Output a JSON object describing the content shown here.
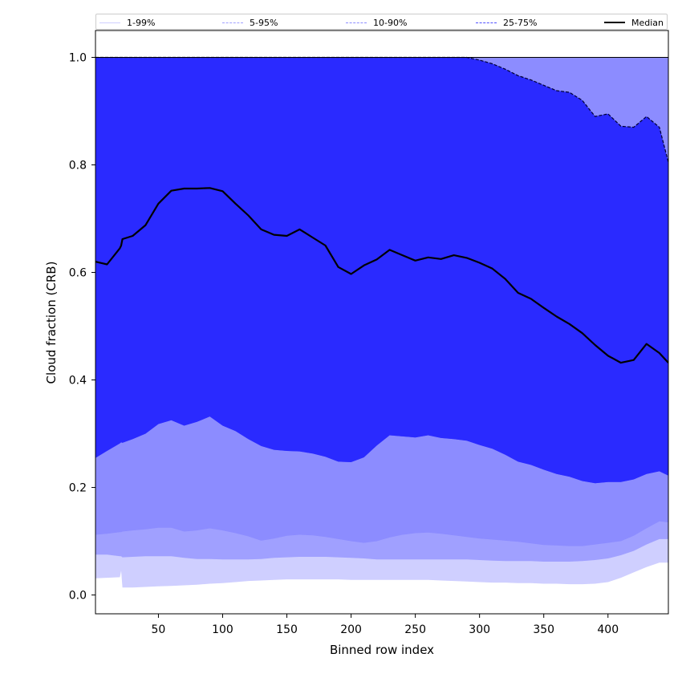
{
  "chart_data": {
    "type": "area",
    "title": "",
    "xlabel": "Binned row index",
    "ylabel": "Cloud fraction (CRB)",
    "xlim": [
      1,
      447
    ],
    "ylim": [
      -0.035,
      1.05
    ],
    "xticks": [
      50,
      100,
      150,
      200,
      250,
      300,
      350,
      400
    ],
    "yticks": [
      0.0,
      0.2,
      0.4,
      0.6,
      0.8,
      1.0
    ],
    "ytick_labels": [
      "0.0",
      "0.2",
      "0.4",
      "0.6",
      "0.8",
      "1.0"
    ],
    "grid": false,
    "legend_position": "top, above plot",
    "legend": [
      {
        "label": "1-99%",
        "color": "#cfcfff",
        "style": "solid",
        "width": 0.7
      },
      {
        "label": "5-95%",
        "color": "#a0a0ff",
        "style": "dashed",
        "width": 0.7
      },
      {
        "label": "10-90%",
        "color": "#8c8cff",
        "style": "dashed",
        "width": 1.2
      },
      {
        "label": "25-75%",
        "color": "#5050ff",
        "style": "dashed",
        "width": 1.6
      },
      {
        "label": "Median",
        "color": "#000000",
        "style": "solid",
        "width": 2.2
      }
    ],
    "x": [
      1,
      10,
      20,
      21,
      22,
      30,
      40,
      50,
      60,
      70,
      80,
      90,
      100,
      110,
      120,
      130,
      140,
      150,
      160,
      170,
      180,
      190,
      200,
      210,
      220,
      230,
      240,
      250,
      260,
      270,
      280,
      290,
      300,
      310,
      320,
      330,
      340,
      350,
      360,
      370,
      380,
      390,
      400,
      410,
      420,
      430,
      440,
      447
    ],
    "bands": [
      {
        "name": "1-99%",
        "color": "#cfcfff",
        "lower": [
          0.031,
          0.032,
          0.033,
          0.045,
          0.014,
          0.014,
          0.015,
          0.016,
          0.017,
          0.018,
          0.019,
          0.021,
          0.022,
          0.024,
          0.026,
          0.027,
          0.028,
          0.029,
          0.029,
          0.029,
          0.029,
          0.029,
          0.028,
          0.028,
          0.028,
          0.028,
          0.028,
          0.028,
          0.028,
          0.027,
          0.026,
          0.025,
          0.024,
          0.023,
          0.023,
          0.022,
          0.022,
          0.021,
          0.021,
          0.02,
          0.02,
          0.021,
          0.024,
          0.032,
          0.042,
          0.052,
          0.06,
          0.06
        ],
        "upper": [
          1.0,
          1.0,
          1.0,
          1.0,
          1.0,
          1.0,
          1.0,
          1.0,
          1.0,
          1.0,
          1.0,
          1.0,
          1.0,
          1.0,
          1.0,
          1.0,
          1.0,
          1.0,
          1.0,
          1.0,
          1.0,
          1.0,
          1.0,
          1.0,
          1.0,
          1.0,
          1.0,
          1.0,
          1.0,
          1.0,
          1.0,
          1.0,
          1.0,
          1.0,
          1.0,
          1.0,
          1.0,
          1.0,
          1.0,
          1.0,
          1.0,
          1.0,
          1.0,
          1.0,
          1.0,
          1.0,
          1.0,
          1.0
        ]
      },
      {
        "name": "5-95%",
        "color": "#a0a0ff",
        "lower": [
          0.075,
          0.075,
          0.072,
          0.072,
          0.07,
          0.071,
          0.072,
          0.072,
          0.072,
          0.069,
          0.067,
          0.067,
          0.066,
          0.066,
          0.066,
          0.067,
          0.069,
          0.07,
          0.071,
          0.071,
          0.071,
          0.07,
          0.069,
          0.068,
          0.066,
          0.066,
          0.066,
          0.066,
          0.066,
          0.066,
          0.066,
          0.066,
          0.065,
          0.064,
          0.063,
          0.063,
          0.063,
          0.062,
          0.062,
          0.062,
          0.063,
          0.065,
          0.068,
          0.074,
          0.082,
          0.094,
          0.104,
          0.104
        ],
        "upper": [
          1.0,
          1.0,
          1.0,
          1.0,
          1.0,
          1.0,
          1.0,
          1.0,
          1.0,
          1.0,
          1.0,
          1.0,
          1.0,
          1.0,
          1.0,
          1.0,
          1.0,
          1.0,
          1.0,
          1.0,
          1.0,
          1.0,
          1.0,
          1.0,
          1.0,
          1.0,
          1.0,
          1.0,
          1.0,
          1.0,
          1.0,
          1.0,
          1.0,
          1.0,
          1.0,
          1.0,
          1.0,
          1.0,
          1.0,
          1.0,
          1.0,
          1.0,
          1.0,
          1.0,
          1.0,
          1.0,
          1.0,
          1.0
        ]
      },
      {
        "name": "10-90%",
        "color": "#8c8cff",
        "lower": [
          0.112,
          0.114,
          0.117,
          0.117,
          0.118,
          0.12,
          0.122,
          0.125,
          0.125,
          0.118,
          0.12,
          0.124,
          0.12,
          0.115,
          0.109,
          0.101,
          0.105,
          0.11,
          0.112,
          0.111,
          0.108,
          0.104,
          0.1,
          0.097,
          0.1,
          0.107,
          0.112,
          0.115,
          0.116,
          0.114,
          0.111,
          0.108,
          0.105,
          0.103,
          0.101,
          0.099,
          0.096,
          0.093,
          0.092,
          0.091,
          0.091,
          0.094,
          0.097,
          0.1,
          0.11,
          0.124,
          0.137,
          0.135
        ],
        "upper": [
          1.0,
          1.0,
          1.0,
          1.0,
          1.0,
          1.0,
          1.0,
          1.0,
          1.0,
          1.0,
          1.0,
          1.0,
          1.0,
          1.0,
          1.0,
          1.0,
          1.0,
          1.0,
          1.0,
          1.0,
          1.0,
          1.0,
          1.0,
          1.0,
          1.0,
          1.0,
          1.0,
          1.0,
          1.0,
          1.0,
          1.0,
          1.0,
          1.0,
          1.0,
          1.0,
          1.0,
          1.0,
          1.0,
          1.0,
          1.0,
          1.0,
          1.0,
          1.0,
          1.0,
          1.0,
          1.0,
          1.0,
          1.0
        ]
      },
      {
        "name": "25-75%",
        "color": "#5050ff",
        "lower": [
          0.255,
          0.268,
          0.282,
          0.284,
          0.283,
          0.29,
          0.3,
          0.318,
          0.325,
          0.315,
          0.322,
          0.332,
          0.315,
          0.305,
          0.29,
          0.277,
          0.27,
          0.268,
          0.267,
          0.263,
          0.257,
          0.248,
          0.247,
          0.256,
          0.278,
          0.297,
          0.295,
          0.293,
          0.297,
          0.292,
          0.29,
          0.287,
          0.279,
          0.272,
          0.261,
          0.248,
          0.242,
          0.233,
          0.225,
          0.22,
          0.212,
          0.208,
          0.21,
          0.21,
          0.215,
          0.225,
          0.23,
          0.222
        ],
        "upper": [
          1.0,
          1.0,
          1.0,
          1.0,
          1.0,
          1.0,
          1.0,
          1.0,
          1.0,
          1.0,
          1.0,
          1.0,
          1.0,
          1.0,
          1.0,
          1.0,
          1.0,
          1.0,
          1.0,
          1.0,
          1.0,
          1.0,
          1.0,
          1.0,
          1.0,
          1.0,
          1.0,
          1.0,
          1.0,
          1.0,
          1.0,
          1.0,
          0.995,
          0.988,
          0.978,
          0.966,
          0.958,
          0.948,
          0.938,
          0.935,
          0.92,
          0.89,
          0.895,
          0.872,
          0.87,
          0.89,
          0.87,
          0.805
        ]
      }
    ],
    "series": [
      {
        "name": "Median",
        "color": "#000000",
        "values": [
          0.62,
          0.615,
          0.645,
          0.65,
          0.662,
          0.668,
          0.688,
          0.728,
          0.752,
          0.756,
          0.756,
          0.757,
          0.751,
          0.728,
          0.706,
          0.68,
          0.67,
          0.668,
          0.68,
          0.665,
          0.65,
          0.61,
          0.597,
          0.613,
          0.624,
          0.642,
          0.632,
          0.622,
          0.628,
          0.625,
          0.632,
          0.627,
          0.618,
          0.607,
          0.588,
          0.562,
          0.551,
          0.534,
          0.518,
          0.504,
          0.487,
          0.465,
          0.445,
          0.432,
          0.437,
          0.467,
          0.45,
          0.432
        ]
      }
    ]
  }
}
